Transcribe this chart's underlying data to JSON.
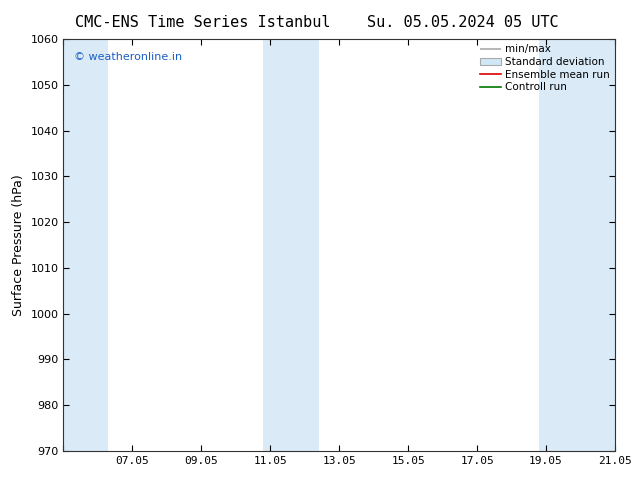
{
  "title_left": "CMC-ENS Time Series Istanbul",
  "title_right": "Su. 05.05.2024 05 UTC",
  "ylabel": "Surface Pressure (hPa)",
  "ylim": [
    970,
    1060
  ],
  "yticks": [
    970,
    980,
    990,
    1000,
    1010,
    1020,
    1030,
    1040,
    1050,
    1060
  ],
  "xlim": [
    0,
    16
  ],
  "xtick_labels": [
    "",
    "07.05",
    "09.05",
    "11.05",
    "13.05",
    "15.05",
    "17.05",
    "19.05",
    "21.05"
  ],
  "xtick_positions": [
    0,
    2,
    4,
    6,
    8,
    10,
    12,
    14,
    16
  ],
  "bg_color": "#ffffff",
  "plot_bg_color": "#ffffff",
  "shaded_bands": [
    {
      "x_start": 0.0,
      "x_end": 1.3,
      "color": "#daeaf7"
    },
    {
      "x_start": 5.8,
      "x_end": 7.4,
      "color": "#daeaf7"
    },
    {
      "x_start": 13.8,
      "x_end": 16.0,
      "color": "#daeaf7"
    }
  ],
  "watermark_text": "© weatheronline.in",
  "watermark_color": "#1a5fc4",
  "legend_labels": [
    "min/max",
    "Standard deviation",
    "Ensemble mean run",
    "Controll run"
  ],
  "legend_line_colors": [
    "#aaaaaa",
    "#cccccc",
    "#dd0000",
    "#007700"
  ],
  "title_fontsize": 11,
  "ylabel_fontsize": 9,
  "tick_fontsize": 8,
  "legend_fontsize": 7.5,
  "watermark_fontsize": 8
}
